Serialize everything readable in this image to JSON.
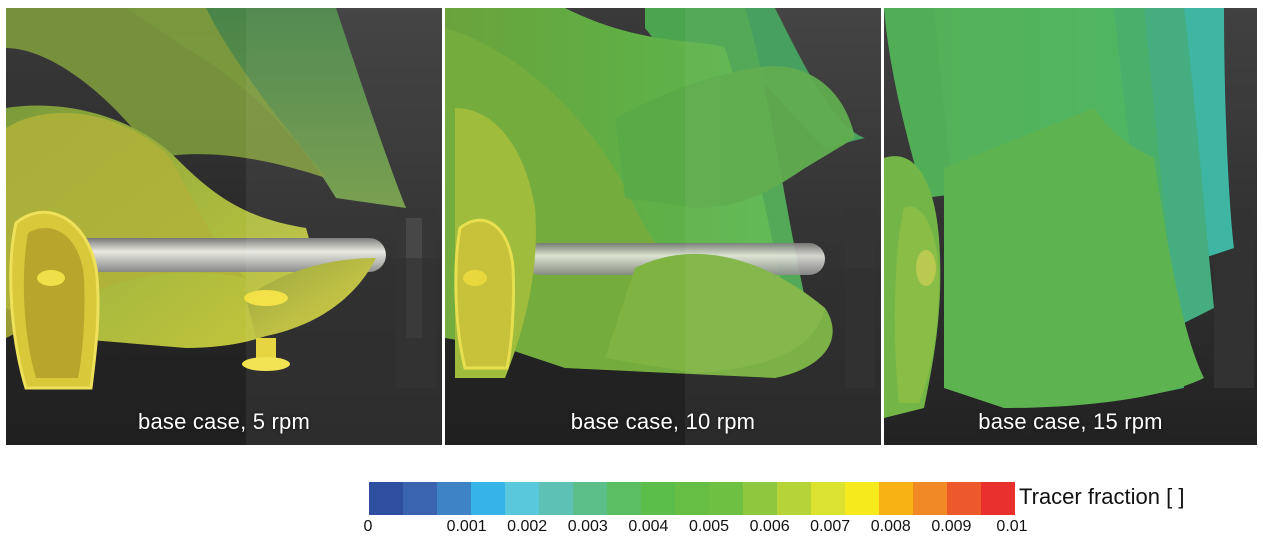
{
  "panels": [
    {
      "label": "base case, 5 rpm"
    },
    {
      "label": "base case, 10 rpm"
    },
    {
      "label": "base case, 15 rpm"
    }
  ],
  "colorbar": {
    "title": "Tracer fraction [ ]",
    "colors": [
      "#2e4e9f",
      "#3a63b0",
      "#3f83c7",
      "#35b4e8",
      "#5ac8dc",
      "#5dc2b5",
      "#5cbf8a",
      "#5abf62",
      "#5bbe4a",
      "#66be44",
      "#6ec043",
      "#8ec83f",
      "#b6d338",
      "#dbe230",
      "#f6ea1c",
      "#f9b214",
      "#f18a25",
      "#ec5a2c",
      "#e8312c"
    ],
    "ticks": [
      "0",
      "0.001",
      "0.002",
      "0.003",
      "0.004",
      "0.005",
      "0.006",
      "0.007",
      "0.008",
      "0.009",
      "0.01"
    ]
  }
}
